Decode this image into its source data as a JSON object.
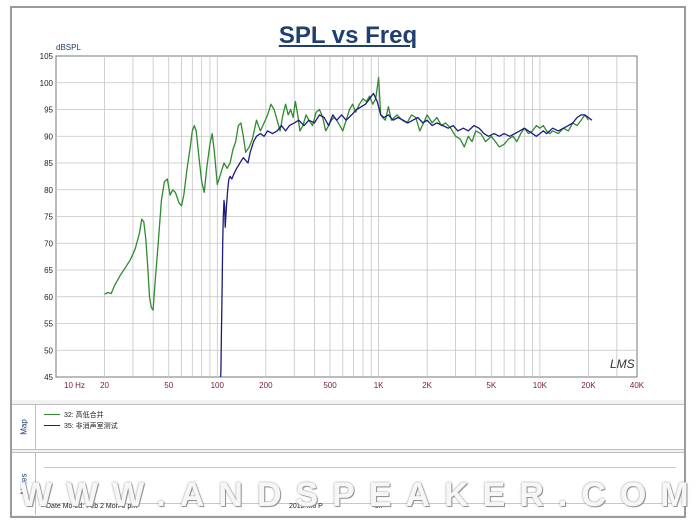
{
  "chart_data": {
    "type": "line",
    "title": "SPL vs Freq",
    "ylabel": "dBSPL",
    "xscale": "log",
    "xlim": [
      10,
      40000
    ],
    "ylim": [
      45,
      105
    ],
    "yticks": [
      45,
      50,
      55,
      60,
      65,
      70,
      75,
      80,
      85,
      90,
      95,
      100,
      105
    ],
    "xticks": [
      {
        "value": 10,
        "label": "10  Hz"
      },
      {
        "value": 20,
        "label": "20"
      },
      {
        "value": 50,
        "label": "50"
      },
      {
        "value": 100,
        "label": "100"
      },
      {
        "value": 200,
        "label": "200"
      },
      {
        "value": 500,
        "label": "500"
      },
      {
        "value": 1000,
        "label": "1K"
      },
      {
        "value": 2000,
        "label": "2K"
      },
      {
        "value": 5000,
        "label": "5K"
      },
      {
        "value": 10000,
        "label": "10K"
      },
      {
        "value": 20000,
        "label": "20K"
      },
      {
        "value": 40000,
        "label": "40K"
      }
    ],
    "grid": true,
    "series": [
      {
        "name": "32: 高低合并",
        "color": "#2e8b2e",
        "points": [
          [
            20,
            60.5
          ],
          [
            21,
            60.8
          ],
          [
            22,
            60.6
          ],
          [
            23,
            62
          ],
          [
            25,
            64
          ],
          [
            27,
            65.5
          ],
          [
            29,
            67
          ],
          [
            31,
            69
          ],
          [
            33,
            72
          ],
          [
            34,
            74.5
          ],
          [
            35,
            74
          ],
          [
            36,
            71
          ],
          [
            37,
            66
          ],
          [
            38,
            60
          ],
          [
            39,
            58
          ],
          [
            40,
            57.5
          ],
          [
            41,
            62
          ],
          [
            43,
            70
          ],
          [
            45,
            78
          ],
          [
            47,
            81.5
          ],
          [
            49,
            82
          ],
          [
            51,
            79
          ],
          [
            53,
            80
          ],
          [
            55,
            79.5
          ],
          [
            58,
            77.5
          ],
          [
            60,
            77
          ],
          [
            62,
            79
          ],
          [
            65,
            84
          ],
          [
            68,
            88
          ],
          [
            70,
            91
          ],
          [
            72,
            92
          ],
          [
            74,
            91
          ],
          [
            77,
            86
          ],
          [
            80,
            81.5
          ],
          [
            83,
            79.5
          ],
          [
            86,
            84
          ],
          [
            90,
            88.5
          ],
          [
            93,
            90.5
          ],
          [
            96,
            87
          ],
          [
            100,
            81
          ],
          [
            105,
            83
          ],
          [
            110,
            85
          ],
          [
            115,
            84
          ],
          [
            120,
            85
          ],
          [
            125,
            87.5
          ],
          [
            130,
            89
          ],
          [
            135,
            92
          ],
          [
            140,
            92.5
          ],
          [
            145,
            90
          ],
          [
            150,
            87
          ],
          [
            158,
            88
          ],
          [
            165,
            89.5
          ],
          [
            175,
            93
          ],
          [
            185,
            91
          ],
          [
            195,
            92.5
          ],
          [
            205,
            94
          ],
          [
            215,
            96
          ],
          [
            225,
            95
          ],
          [
            235,
            93
          ],
          [
            245,
            91
          ],
          [
            255,
            94
          ],
          [
            265,
            96
          ],
          [
            275,
            94
          ],
          [
            285,
            95
          ],
          [
            295,
            93.5
          ],
          [
            305,
            96.5
          ],
          [
            315,
            94
          ],
          [
            325,
            91
          ],
          [
            340,
            92
          ],
          [
            355,
            94
          ],
          [
            370,
            93
          ],
          [
            390,
            92
          ],
          [
            410,
            94.5
          ],
          [
            430,
            95
          ],
          [
            450,
            93.5
          ],
          [
            470,
            91
          ],
          [
            490,
            92
          ],
          [
            510,
            93
          ],
          [
            530,
            93.5
          ],
          [
            550,
            93
          ],
          [
            575,
            92
          ],
          [
            600,
            91
          ],
          [
            630,
            93
          ],
          [
            660,
            95
          ],
          [
            690,
            96
          ],
          [
            720,
            94.5
          ],
          [
            760,
            96
          ],
          [
            800,
            97
          ],
          [
            840,
            96.5
          ],
          [
            880,
            97.5
          ],
          [
            920,
            96
          ],
          [
            960,
            97
          ],
          [
            1000,
            101
          ],
          [
            1030,
            94
          ],
          [
            1060,
            93.5
          ],
          [
            1100,
            93
          ],
          [
            1150,
            95.5
          ],
          [
            1200,
            93
          ],
          [
            1300,
            94
          ],
          [
            1400,
            93
          ],
          [
            1500,
            92.5
          ],
          [
            1600,
            94
          ],
          [
            1700,
            93.5
          ],
          [
            1800,
            91
          ],
          [
            1900,
            92.5
          ],
          [
            2000,
            94
          ],
          [
            2150,
            92.5
          ],
          [
            2300,
            93.5
          ],
          [
            2450,
            92
          ],
          [
            2600,
            92.5
          ],
          [
            2800,
            91.5
          ],
          [
            3000,
            90
          ],
          [
            3200,
            89.5
          ],
          [
            3400,
            88
          ],
          [
            3600,
            90
          ],
          [
            3800,
            89
          ],
          [
            4000,
            91
          ],
          [
            4300,
            90.5
          ],
          [
            4600,
            89
          ],
          [
            5000,
            90
          ],
          [
            5300,
            89
          ],
          [
            5600,
            88
          ],
          [
            6000,
            88.5
          ],
          [
            6400,
            89.5
          ],
          [
            6800,
            90
          ],
          [
            7200,
            89
          ],
          [
            7600,
            90.5
          ],
          [
            8000,
            91.5
          ],
          [
            8500,
            90.5
          ],
          [
            9000,
            91
          ],
          [
            9500,
            92
          ],
          [
            10000,
            91.5
          ],
          [
            10500,
            92
          ],
          [
            11000,
            91
          ],
          [
            11500,
            90.5
          ],
          [
            12000,
            91
          ],
          [
            13000,
            90.5
          ],
          [
            14000,
            91.5
          ],
          [
            15000,
            91
          ],
          [
            16000,
            92.5
          ],
          [
            17000,
            92
          ],
          [
            18000,
            93
          ],
          [
            19000,
            94
          ],
          [
            20000,
            93
          ]
        ]
      },
      {
        "name": "35: 非消声室测试",
        "color": "#1c1c7c",
        "points": [
          [
            105,
            45
          ],
          [
            105.5,
            47
          ],
          [
            106,
            53
          ],
          [
            107,
            60
          ],
          [
            108,
            70
          ],
          [
            109,
            75
          ],
          [
            110,
            78
          ],
          [
            111,
            77
          ],
          [
            112,
            73
          ],
          [
            114,
            77
          ],
          [
            116,
            80
          ],
          [
            118,
            82
          ],
          [
            120,
            82.5
          ],
          [
            123,
            82
          ],
          [
            127,
            83
          ],
          [
            132,
            84
          ],
          [
            138,
            85
          ],
          [
            145,
            86
          ],
          [
            150,
            85.5
          ],
          [
            155,
            85
          ],
          [
            160,
            87
          ],
          [
            168,
            89
          ],
          [
            175,
            90
          ],
          [
            185,
            90.5
          ],
          [
            195,
            90
          ],
          [
            205,
            91
          ],
          [
            220,
            90.5
          ],
          [
            235,
            91
          ],
          [
            250,
            92
          ],
          [
            265,
            91
          ],
          [
            280,
            92
          ],
          [
            300,
            92.5
          ],
          [
            320,
            93
          ],
          [
            345,
            92
          ],
          [
            370,
            93
          ],
          [
            400,
            92.5
          ],
          [
            430,
            94
          ],
          [
            460,
            93.5
          ],
          [
            490,
            92
          ],
          [
            520,
            94
          ],
          [
            550,
            93
          ],
          [
            590,
            94
          ],
          [
            630,
            93
          ],
          [
            680,
            94
          ],
          [
            730,
            95
          ],
          [
            780,
            95.5
          ],
          [
            830,
            96
          ],
          [
            880,
            97
          ],
          [
            930,
            98
          ],
          [
            980,
            96.5
          ],
          [
            1030,
            94
          ],
          [
            1080,
            93.5
          ],
          [
            1150,
            94
          ],
          [
            1230,
            93
          ],
          [
            1320,
            93.5
          ],
          [
            1420,
            93
          ],
          [
            1520,
            92.5
          ],
          [
            1630,
            93
          ],
          [
            1750,
            93.5
          ],
          [
            1880,
            92.5
          ],
          [
            2000,
            93
          ],
          [
            2150,
            92
          ],
          [
            2300,
            92.5
          ],
          [
            2500,
            92
          ],
          [
            2700,
            91.5
          ],
          [
            2900,
            92
          ],
          [
            3100,
            91
          ],
          [
            3350,
            91.5
          ],
          [
            3600,
            91
          ],
          [
            3900,
            92
          ],
          [
            4200,
            91.5
          ],
          [
            4500,
            90.5
          ],
          [
            4800,
            90
          ],
          [
            5200,
            90.5
          ],
          [
            5600,
            90
          ],
          [
            6000,
            90.5
          ],
          [
            6500,
            90
          ],
          [
            7000,
            90.5
          ],
          [
            7500,
            91
          ],
          [
            8000,
            91.5
          ],
          [
            8500,
            91
          ],
          [
            9000,
            90.5
          ],
          [
            9500,
            90
          ],
          [
            10000,
            90.5
          ],
          [
            10500,
            91
          ],
          [
            11000,
            90.5
          ],
          [
            11500,
            91
          ],
          [
            12000,
            91.5
          ],
          [
            13000,
            91
          ],
          [
            14000,
            91.5
          ],
          [
            15000,
            92
          ],
          [
            16000,
            92.5
          ],
          [
            17000,
            93.5
          ],
          [
            18000,
            94
          ],
          [
            19000,
            94
          ],
          [
            20000,
            93.5
          ],
          [
            21000,
            93
          ]
        ]
      }
    ]
  },
  "map_label": "Map",
  "notes_label": "Notes",
  "logo_text": "LMS",
  "watermark_text": "WWW.ANDSPEAKER.COM",
  "notes_fragments": {
    "date": "Date Mo  ed: Feb 2        Mon  6   pm",
    "mid": "  2012  Mo     P",
    "end": "  on"
  }
}
